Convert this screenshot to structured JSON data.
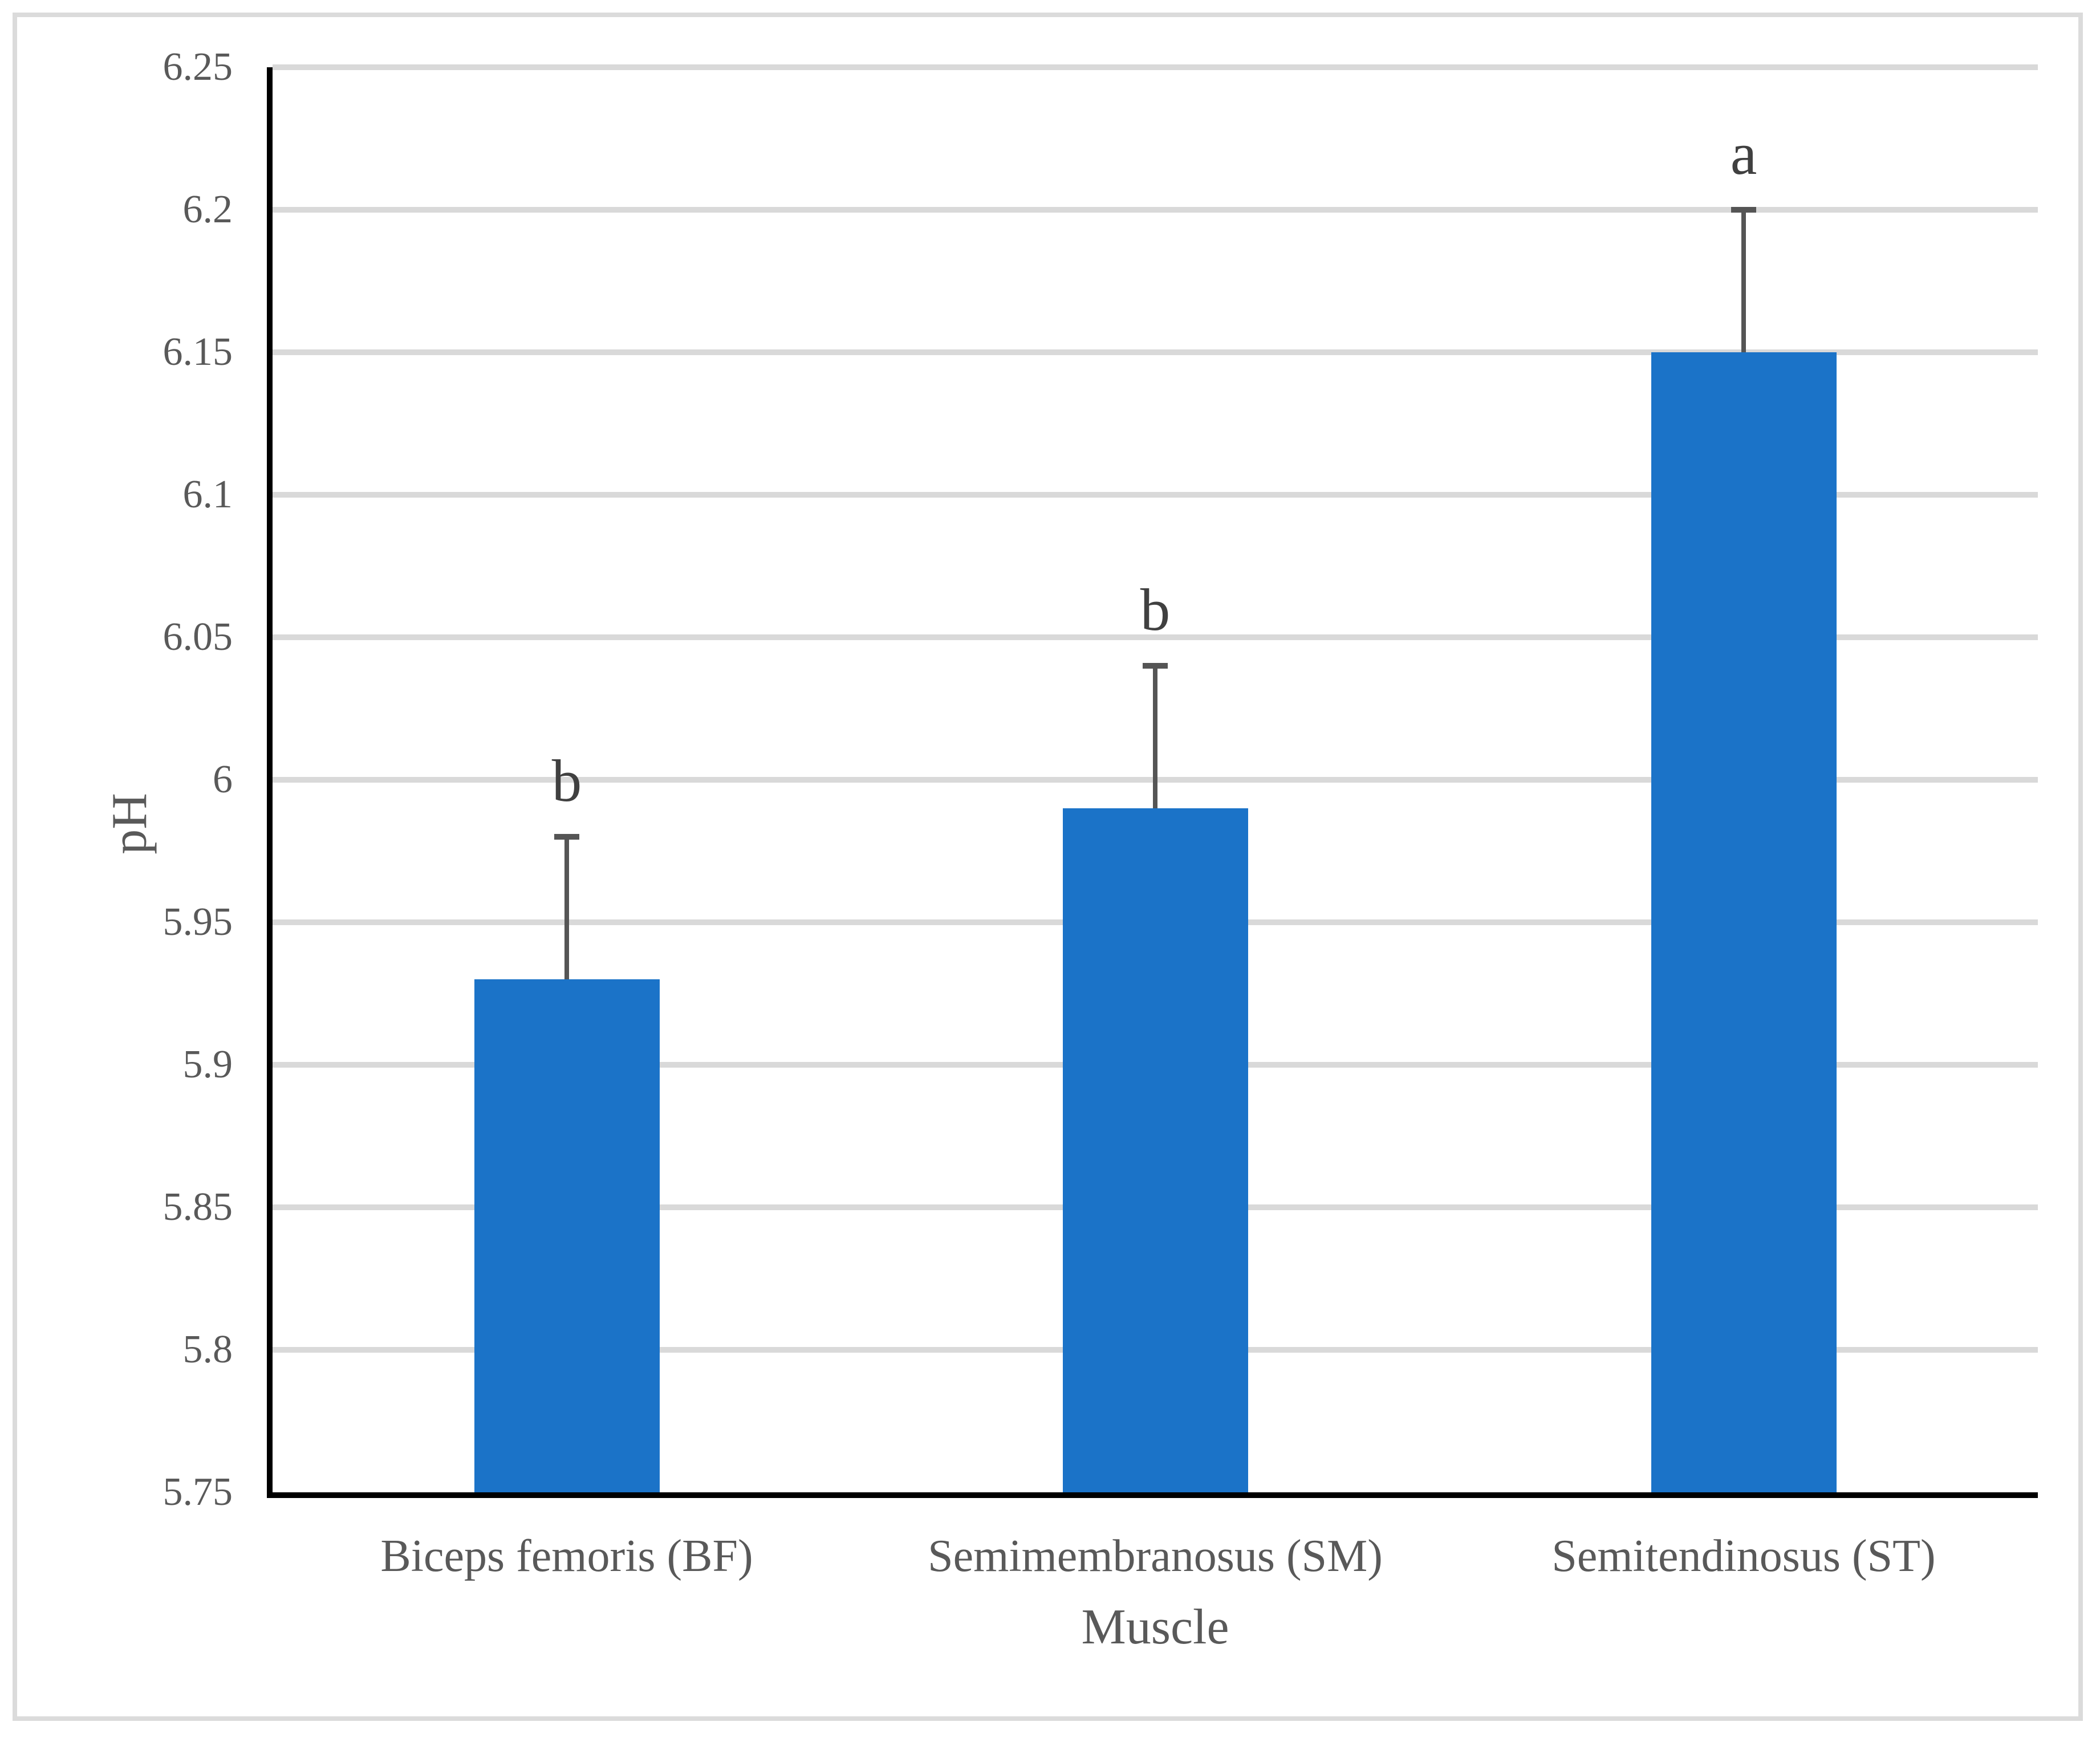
{
  "figure": {
    "background_color": "#FFFFFF",
    "border_color": "#DBDBDB"
  },
  "chart_data": {
    "type": "bar",
    "title": "",
    "xlabel": "Muscle",
    "ylabel": "pH",
    "categories": [
      "Biceps femoris (BF)",
      "Semimembranosus (SM)",
      "Semitendinosus (ST)"
    ],
    "series": [
      {
        "name": "pH",
        "values": [
          5.93,
          5.99,
          6.15
        ],
        "error_plus": [
          0.05,
          0.05,
          0.05
        ],
        "error_bar_tops": [
          5.98,
          6.04,
          6.2
        ],
        "annotations": [
          "b",
          "b",
          "a"
        ]
      }
    ],
    "ylim": [
      5.75,
      6.25
    ],
    "ytick_step": 0.05,
    "yticks": [
      {
        "v": 6.25,
        "label": "6.25"
      },
      {
        "v": 6.2,
        "label": "6.2"
      },
      {
        "v": 6.15,
        "label": "6.15"
      },
      {
        "v": 6.1,
        "label": "6.1"
      },
      {
        "v": 6.05,
        "label": "6.05"
      },
      {
        "v": 6.0,
        "label": "6"
      },
      {
        "v": 5.95,
        "label": "5.95"
      },
      {
        "v": 5.9,
        "label": "5.9"
      },
      {
        "v": 5.85,
        "label": "5.85"
      },
      {
        "v": 5.8,
        "label": "5.8"
      },
      {
        "v": 5.75,
        "label": "5.75"
      }
    ],
    "grid": "horizontal",
    "legend_position": "none",
    "colors": {
      "bar": "#1B73C8",
      "error_bar": "#555555",
      "gridline": "#D9D9D9",
      "axis_line": "#000000",
      "tick_label": "#595959",
      "annotation": "#404040"
    }
  }
}
